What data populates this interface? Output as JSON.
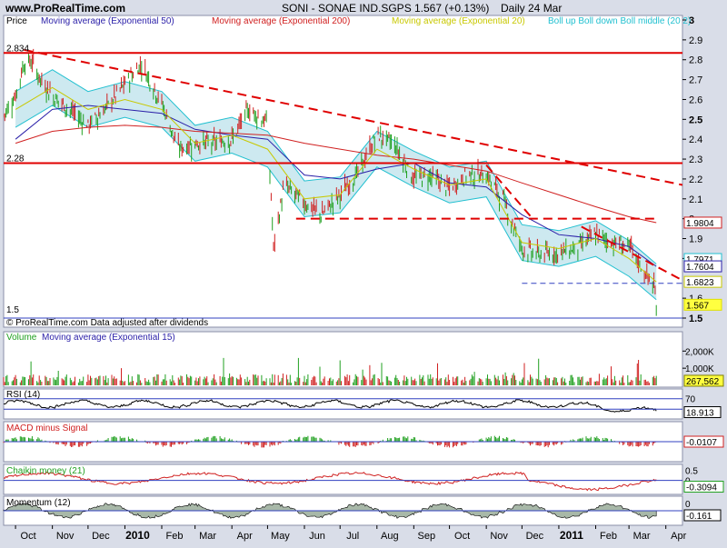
{
  "header": {
    "site": "www.ProRealTime.com",
    "title": "SONI - SONAE IND.SGPS",
    "quote": "1.567 (+0.13%)",
    "period": "Daily  24 Mar"
  },
  "price_pane": {
    "label": "Price",
    "legend": [
      {
        "text": "Moving average (Exponential 50)",
        "color": "#2a1fa8"
      },
      {
        "text": "Moving average (Exponential 200)",
        "color": "#d02020"
      },
      {
        "text": "Moving average (Exponential 20)",
        "color": "#c8c800"
      },
      {
        "text": "Boll up Boll down Boll middle (20 2)",
        "color": "#22c0d0"
      }
    ],
    "footer": "© ProRealTime.com  Data adjusted after dividends",
    "level_labels": [
      "2.834",
      "2.28",
      "1.5"
    ],
    "y_ticks": [
      "3",
      "2.9",
      "2.8",
      "2.7",
      "2.6",
      "2.5",
      "2.4",
      "2.3",
      "2.2",
      "2.1",
      "2",
      "1.9",
      "1.8",
      "1.6",
      "1.5"
    ],
    "y_tick_values": [
      3,
      2.9,
      2.8,
      2.7,
      2.6,
      2.5,
      2.4,
      2.3,
      2.2,
      2.1,
      2,
      1.9,
      1.8,
      1.6,
      1.5
    ],
    "y_bold": [
      "3",
      "2.5",
      "1.5"
    ],
    "value_boxes": [
      {
        "text": "1.9804",
        "value": 1.9804,
        "color": "#d02020"
      },
      {
        "text": "1.7971",
        "value": 1.7971,
        "color": "#22c0d0"
      },
      {
        "text": "1.7604",
        "value": 1.7604,
        "color": "#2a1fa8"
      },
      {
        "text": "1.6823",
        "value": 1.6823,
        "color": "#c8c800"
      },
      {
        "text": "1.567",
        "value": 1.567,
        "color": "#e0e000"
      }
    ]
  },
  "volume_pane": {
    "legend": [
      {
        "text": "Volume",
        "color": "#20a020"
      },
      {
        "text": "Moving average (Exponential 15)",
        "color": "#2a1fa8"
      }
    ],
    "y_ticks": [
      "2,000K",
      "1,000K"
    ],
    "y_tick_values": [
      2000,
      1000
    ],
    "value_box": "267,562",
    "value_box_value": 267.562
  },
  "rsi_pane": {
    "label": "RSI (14)",
    "y_ticks": [
      "70"
    ],
    "y_tick_values": [
      70
    ],
    "value_box": "18.913",
    "value_box_value": 18.913
  },
  "macd_pane": {
    "label": "MACD minus Signal",
    "value_box": "-0.0107"
  },
  "chaikin_pane": {
    "label": "Chaikin money (21)",
    "y_ticks": [
      "0.5",
      "0"
    ],
    "y_tick_values": [
      0.5,
      0
    ],
    "value_box": "-0.3094",
    "value_box_value": -0.3094
  },
  "momentum_pane": {
    "label": "Momentum (12)",
    "y_ticks": [
      "0"
    ],
    "y_tick_values": [
      0
    ],
    "value_box": "-0.161",
    "value_box_value": -0.161
  },
  "x_axis": {
    "labels": [
      {
        "text": "Oct",
        "bold": false
      },
      {
        "text": "Nov",
        "bold": false
      },
      {
        "text": "Dec",
        "bold": false
      },
      {
        "text": "2010",
        "bold": true
      },
      {
        "text": "Feb",
        "bold": false
      },
      {
        "text": "Mar",
        "bold": false
      },
      {
        "text": "Apr",
        "bold": false
      },
      {
        "text": "May",
        "bold": false
      },
      {
        "text": "Jun",
        "bold": false
      },
      {
        "text": "Jul",
        "bold": false
      },
      {
        "text": "Aug",
        "bold": false
      },
      {
        "text": "Sep",
        "bold": false
      },
      {
        "text": "Oct",
        "bold": false
      },
      {
        "text": "Nov",
        "bold": false
      },
      {
        "text": "Dec",
        "bold": false
      },
      {
        "text": "2011",
        "bold": true
      },
      {
        "text": "Feb",
        "bold": false
      },
      {
        "text": "Mar",
        "bold": false
      },
      {
        "text": "Apr",
        "bold": false
      }
    ]
  },
  "chart_data": {
    "type": "line",
    "x_range": [
      "2009-09-21",
      "2011-04-15"
    ],
    "y_range": [
      1.45,
      3.0
    ],
    "series": [
      {
        "name": "SONI",
        "x": [
          "2009-09-21",
          "2009-10-01",
          "2009-10-08",
          "2009-10-15",
          "2009-10-22",
          "2009-11-01",
          "2009-11-15",
          "2009-12-01",
          "2009-12-15",
          "2010-01-01",
          "2010-01-15",
          "2010-02-01",
          "2010-02-15",
          "2010-03-01",
          "2010-03-15",
          "2010-04-01",
          "2010-04-15",
          "2010-05-01",
          "2010-05-06",
          "2010-05-15",
          "2010-06-01",
          "2010-06-15",
          "2010-07-01",
          "2010-07-15",
          "2010-08-01",
          "2010-08-15",
          "2010-09-01",
          "2010-09-15",
          "2010-10-01",
          "2010-10-15",
          "2010-11-01",
          "2010-11-15",
          "2010-12-01",
          "2010-12-15",
          "2011-01-01",
          "2011-01-15",
          "2011-02-01",
          "2011-02-15",
          "2011-03-01",
          "2011-03-15",
          "2011-03-22",
          "2011-03-24"
        ],
        "values": [
          2.52,
          2.62,
          2.78,
          2.79,
          2.7,
          2.62,
          2.55,
          2.47,
          2.55,
          2.68,
          2.78,
          2.58,
          2.35,
          2.38,
          2.38,
          2.4,
          2.55,
          2.48,
          1.85,
          2.17,
          2.08,
          2.02,
          2.12,
          2.22,
          2.42,
          2.38,
          2.2,
          2.22,
          2.15,
          2.22,
          2.22,
          2.1,
          1.85,
          1.82,
          1.83,
          1.85,
          1.92,
          1.88,
          1.86,
          1.72,
          1.66,
          1.567
        ]
      },
      {
        "name": "Moving average (Exponential 50)",
        "x": [
          "2009-10-01",
          "2009-11-01",
          "2009-12-01",
          "2010-01-01",
          "2010-02-01",
          "2010-03-01",
          "2010-04-01",
          "2010-05-01",
          "2010-06-01",
          "2010-07-01",
          "2010-08-01",
          "2010-09-01",
          "2010-10-01",
          "2010-11-01",
          "2010-12-01",
          "2011-01-01",
          "2011-02-01",
          "2011-03-01",
          "2011-03-24"
        ],
        "values": [
          2.4,
          2.55,
          2.57,
          2.55,
          2.53,
          2.45,
          2.42,
          2.4,
          2.22,
          2.2,
          2.25,
          2.28,
          2.18,
          2.16,
          2.02,
          1.92,
          1.9,
          1.86,
          1.7604
        ]
      },
      {
        "name": "Moving average (Exponential 200)",
        "x": [
          "2009-10-01",
          "2009-11-01",
          "2009-12-01",
          "2010-01-01",
          "2010-02-01",
          "2010-03-01",
          "2010-04-01",
          "2010-05-01",
          "2010-06-01",
          "2010-07-01",
          "2010-08-01",
          "2010-09-01",
          "2010-10-01",
          "2010-11-01",
          "2010-12-01",
          "2011-01-01",
          "2011-02-01",
          "2011-03-01",
          "2011-03-24"
        ],
        "values": [
          2.38,
          2.44,
          2.46,
          2.47,
          2.46,
          2.44,
          2.43,
          2.42,
          2.38,
          2.35,
          2.32,
          2.3,
          2.27,
          2.24,
          2.18,
          2.12,
          2.06,
          2.01,
          1.9804
        ]
      },
      {
        "name": "Moving average (Exponential 20)",
        "x": [
          "2009-10-01",
          "2009-11-01",
          "2009-12-01",
          "2010-01-01",
          "2010-02-01",
          "2010-03-01",
          "2010-04-01",
          "2010-05-01",
          "2010-06-01",
          "2010-07-01",
          "2010-08-01",
          "2010-09-01",
          "2010-10-01",
          "2010-11-01",
          "2010-12-01",
          "2011-01-01",
          "2011-02-01",
          "2011-03-01",
          "2011-03-24"
        ],
        "values": [
          2.55,
          2.66,
          2.55,
          2.6,
          2.55,
          2.38,
          2.42,
          2.35,
          2.1,
          2.12,
          2.35,
          2.25,
          2.17,
          2.2,
          1.88,
          1.85,
          1.9,
          1.8,
          1.6823
        ]
      }
    ],
    "levels": [
      2.834,
      2.28,
      1.5
    ],
    "ylabel": "Price"
  }
}
